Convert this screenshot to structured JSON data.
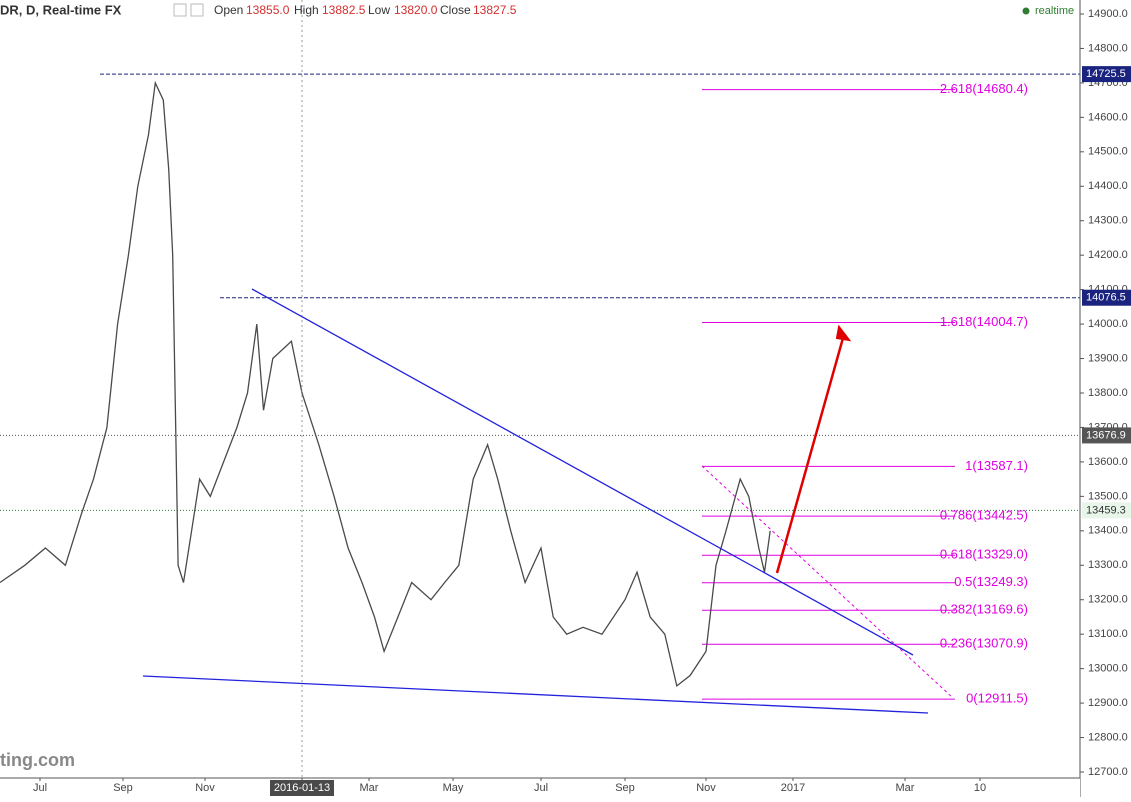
{
  "header": {
    "symbol": "DR, D, Real-time FX",
    "open_label": "Open",
    "open": "13855.0",
    "high_label": "High",
    "high": "13882.5",
    "low_label": "Low",
    "low": "13820.0",
    "close_label": "Close",
    "close": "13827.5",
    "status": "realtime",
    "logo": "ting.com"
  },
  "chart_data": {
    "type": "line",
    "color": "#4a4a4a",
    "x": [
      "2015-06-02",
      "2015-06-20",
      "2015-07-05",
      "2015-07-20",
      "2015-08-01",
      "2015-08-10",
      "2015-08-20",
      "2015-08-28",
      "2015-09-05",
      "2015-09-12",
      "2015-09-20",
      "2015-09-25",
      "2015-10-01",
      "2015-10-05",
      "2015-10-08",
      "2015-10-12",
      "2015-10-16",
      "2015-10-22",
      "2015-10-28",
      "2015-11-05",
      "2015-11-15",
      "2015-11-25",
      "2015-12-03",
      "2015-12-10",
      "2015-12-15",
      "2015-12-22",
      "2016-01-05",
      "2016-01-13",
      "2016-01-25",
      "2016-02-05",
      "2016-02-15",
      "2016-02-25",
      "2016-03-05",
      "2016-03-12",
      "2016-03-22",
      "2016-04-01",
      "2016-04-15",
      "2016-04-25",
      "2016-05-05",
      "2016-05-15",
      "2016-05-25",
      "2016-06-01",
      "2016-06-10",
      "2016-06-20",
      "2016-07-01",
      "2016-07-10",
      "2016-07-20",
      "2016-08-01",
      "2016-08-15",
      "2016-09-01",
      "2016-09-10",
      "2016-09-20",
      "2016-10-01",
      "2016-10-10",
      "2016-10-20",
      "2016-11-01",
      "2016-11-08",
      "2016-11-15",
      "2016-11-25",
      "2016-12-01",
      "2016-12-08",
      "2016-12-12",
      "2016-12-16"
    ],
    "values": [
      13250,
      13300,
      13350,
      13300,
      13450,
      13550,
      13700,
      14000,
      14200,
      14400,
      14550,
      14700,
      14650,
      14450,
      14200,
      13300,
      13250,
      13400,
      13550,
      13500,
      13600,
      13700,
      13800,
      14000,
      13750,
      13900,
      13950,
      13800,
      13650,
      13500,
      13350,
      13250,
      13150,
      13050,
      13150,
      13250,
      13200,
      13250,
      13300,
      13550,
      13650,
      13550,
      13400,
      13250,
      13350,
      13150,
      13100,
      13120,
      13100,
      13200,
      13280,
      13150,
      13100,
      12950,
      12980,
      13050,
      13300,
      13400,
      13550,
      13500,
      13350,
      13280,
      13400
    ],
    "xlim": [
      "2015-06-02",
      "2017-05-20"
    ],
    "xticks": [
      {
        "value": "2015-07-01",
        "label": "Jul"
      },
      {
        "value": "2015-09-01",
        "label": "Sep"
      },
      {
        "value": "2015-11-01",
        "label": "Nov"
      },
      "2016-01-13",
      {
        "value": "2016-03-01",
        "label": "Mar"
      },
      {
        "value": "2016-05-01",
        "label": "May"
      },
      {
        "value": "2016-07-01",
        "label": "Jul"
      },
      {
        "value": "2016-09-01",
        "label": "Sep"
      },
      {
        "value": "2016-11-01",
        "label": "Nov"
      },
      {
        "value": "2017-01-01",
        "label": "2017"
      },
      {
        "value": "2017-03-01",
        "label": "Mar"
      },
      {
        "value": "2017-04-10",
        "label": "10"
      }
    ],
    "ylim": [
      12682.6,
      14940.6
    ],
    "yticks": [
      {
        "value": 12700,
        "label": "12700.0"
      },
      {
        "value": 12800,
        "label": "12800.0"
      },
      {
        "value": 12900,
        "label": "12900.0"
      },
      {
        "value": 13000,
        "label": "13000.0"
      },
      {
        "value": 13100,
        "label": "13100.0"
      },
      {
        "value": 13200,
        "label": "13200.0"
      },
      {
        "value": 13300,
        "label": "13300.0"
      },
      {
        "value": 13400,
        "label": "13400.0"
      },
      {
        "value": 13500,
        "label": "13500.0"
      },
      {
        "value": 13600,
        "label": "13600.0"
      },
      {
        "value": 13700,
        "label": "13700.0"
      },
      {
        "value": 13800,
        "label": "13800.0"
      },
      {
        "value": 13900,
        "label": "13900.0"
      },
      {
        "value": 14000,
        "label": "14000.0"
      },
      {
        "value": 14100,
        "label": "14100.0"
      },
      {
        "value": 14200,
        "label": "14200.0"
      },
      {
        "value": 14300,
        "label": "14300.0"
      },
      {
        "value": 14400,
        "label": "14400.0"
      },
      {
        "value": 14500,
        "label": "14500.0"
      },
      {
        "value": 14600,
        "label": "14600.0"
      },
      {
        "value": 14700,
        "label": "14700.0"
      },
      {
        "value": 14800,
        "label": "14800.0"
      },
      {
        "value": 14900,
        "label": "14900.0"
      }
    ],
    "hlines": [
      {
        "value": 14725.5,
        "color": "#1a237e"
      },
      {
        "value": 14076.5,
        "color": "#1a237e"
      },
      {
        "value": 13676.9,
        "color": "#555555"
      },
      {
        "value": 13459.3,
        "color": "#2e7d32"
      }
    ],
    "fib_levels": [
      {
        "label": "2.618(14680.4)",
        "value": 14680.4
      },
      {
        "label": "1.618(14004.7)",
        "value": 14004.7
      },
      {
        "label": "1(13587.1)",
        "value": 13587.1
      },
      {
        "label": "0.786(13442.5)",
        "value": 13442.5
      },
      {
        "label": "0.618(13329.0)",
        "value": 13329.0
      },
      {
        "label": "0.5(13249.3)",
        "value": 13249.3
      },
      {
        "label": "0.382(13169.6)",
        "value": 13169.6
      },
      {
        "label": "0.236(13070.9)",
        "value": 13070.9
      },
      {
        "label": "0(12911.5)",
        "value": 12911.5
      }
    ],
    "fib_color": "#e000e0"
  }
}
